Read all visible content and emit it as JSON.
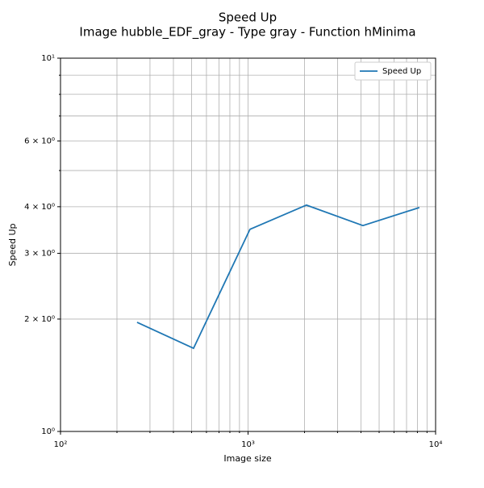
{
  "chart_data": {
    "type": "line",
    "title": "Speed Up",
    "subtitle": "Image hubble_EDF_gray - Type gray - Function hMinima",
    "x_label": "Image size",
    "y_label": "Speed Up",
    "x": [
      256,
      512,
      1024,
      2048,
      4096,
      8192
    ],
    "series": [
      {
        "name": "Speed Up",
        "color": "#1f77b4",
        "values": [
          1.96,
          1.67,
          3.48,
          4.04,
          3.56,
          3.98
        ]
      }
    ],
    "xscale": "log",
    "yscale": "log",
    "xlim": [
      100,
      10000
    ],
    "ylim": [
      1,
      10
    ],
    "xticks": [
      {
        "value": 100,
        "label": "10²"
      },
      {
        "value": 1000,
        "label": "10³"
      },
      {
        "value": 10000,
        "label": "10⁴"
      }
    ],
    "xminor_ticks": [
      200,
      300,
      400,
      500,
      600,
      700,
      800,
      900,
      2000,
      3000,
      4000,
      5000,
      6000,
      7000,
      8000,
      9000
    ],
    "yticks": [
      {
        "value": 1,
        "label": "10⁰"
      },
      {
        "value": 2,
        "label": "2 × 10⁰"
      },
      {
        "value": 3,
        "label": "3 × 10⁰"
      },
      {
        "value": 4,
        "label": "4 × 10⁰"
      },
      {
        "value": 6,
        "label": "6 × 10⁰"
      },
      {
        "value": 10,
        "label": "10¹"
      }
    ],
    "yminor_ticks": [
      5,
      7,
      8,
      9
    ],
    "grid": true,
    "legend": "upper right"
  }
}
